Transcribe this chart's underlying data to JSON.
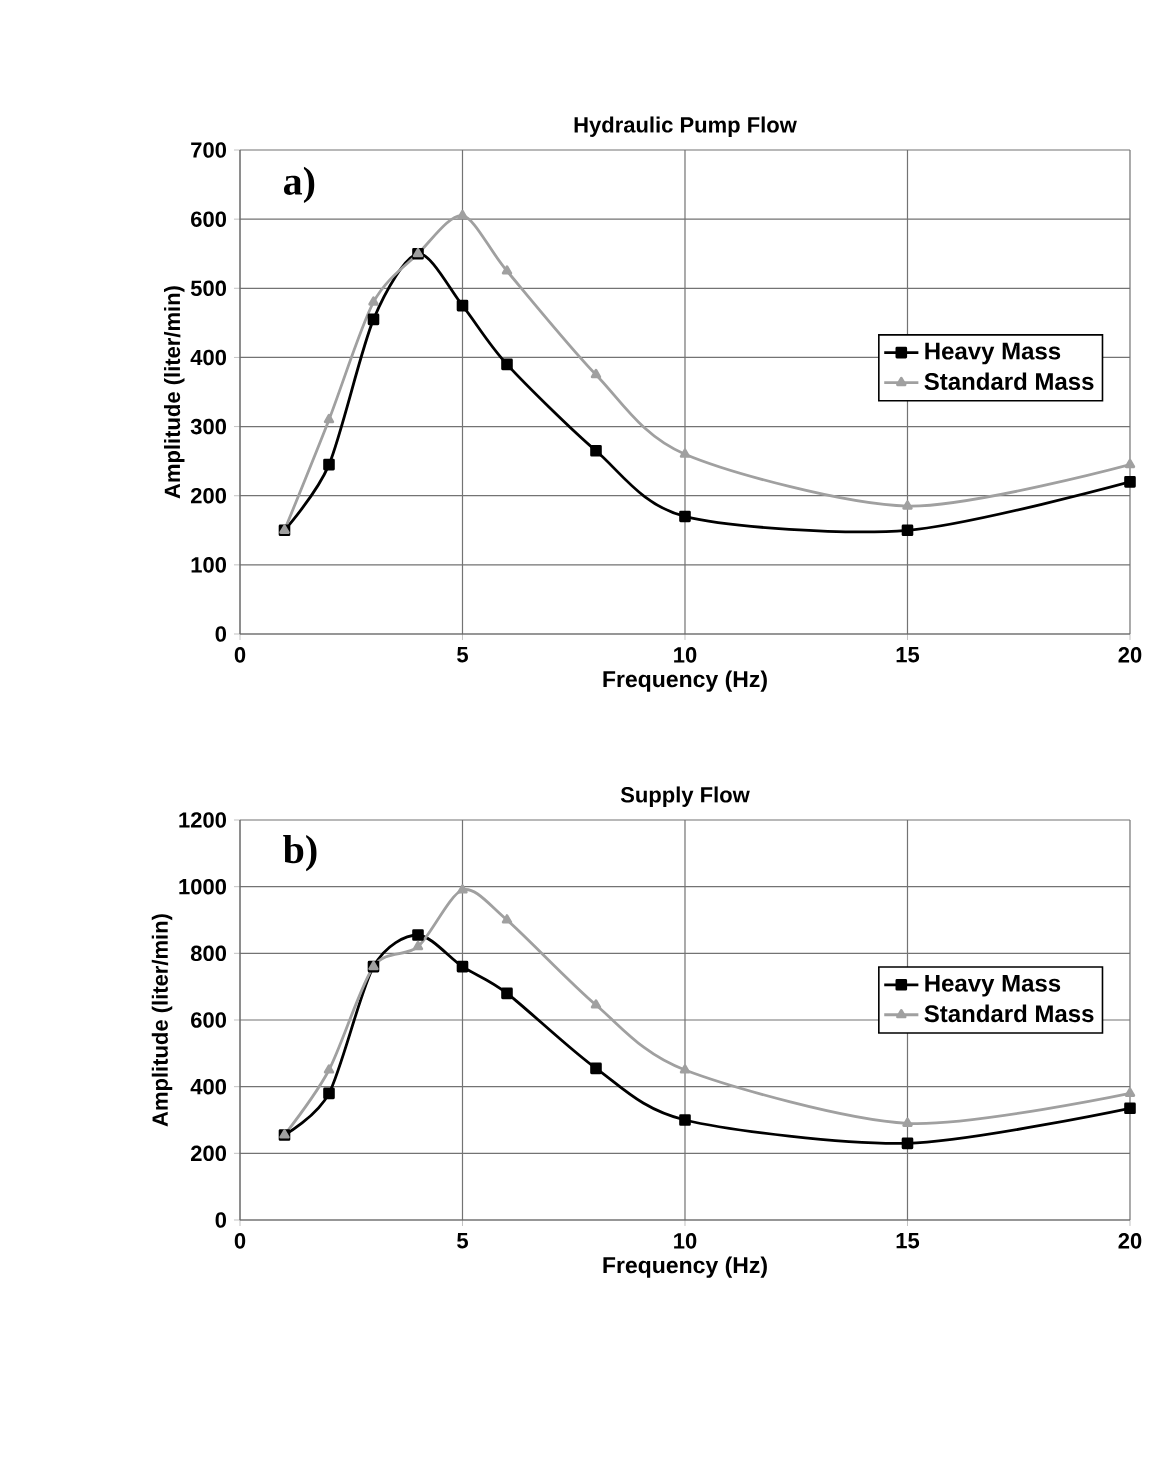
{
  "chart_data": [
    {
      "type": "line",
      "title": "Hydraulic Pump Flow",
      "xlabel": "Frequency (Hz)",
      "ylabel": "Amplitude (liter/min)",
      "annotations": [
        "a)"
      ],
      "xlim": [
        0,
        20
      ],
      "xticks": [
        0,
        5,
        10,
        15,
        20
      ],
      "ylim": [
        0,
        700
      ],
      "yticks": [
        0,
        100,
        200,
        300,
        400,
        500,
        600,
        700
      ],
      "grid": true,
      "legend": "right",
      "x": [
        1,
        2,
        3,
        4,
        5,
        6,
        8,
        10,
        15,
        20
      ],
      "series": [
        {
          "name": "Heavy Mass",
          "color": "#000000",
          "marker": "square",
          "values": [
            150,
            245,
            455,
            550,
            475,
            390,
            265,
            170,
            150,
            220
          ]
        },
        {
          "name": "Standard Mass",
          "color": "#a0a0a0",
          "marker": "triangle",
          "values": [
            150,
            310,
            480,
            550,
            605,
            525,
            375,
            260,
            185,
            245
          ]
        }
      ]
    },
    {
      "type": "line",
      "title": "Supply Flow",
      "xlabel": "Frequency (Hz)",
      "ylabel": "Amplitude (liter/min)",
      "annotations": [
        "b)"
      ],
      "xlim": [
        0,
        20
      ],
      "xticks": [
        0,
        5,
        10,
        15,
        20
      ],
      "ylim": [
        0,
        1200
      ],
      "yticks": [
        0,
        200,
        400,
        600,
        800,
        1000,
        1200
      ],
      "grid": true,
      "legend": "right",
      "x": [
        1,
        2,
        3,
        4,
        5,
        6,
        8,
        10,
        15,
        20
      ],
      "series": [
        {
          "name": "Heavy Mass",
          "color": "#000000",
          "marker": "square",
          "values": [
            255,
            380,
            760,
            855,
            760,
            680,
            455,
            300,
            230,
            335
          ]
        },
        {
          "name": "Standard Mass",
          "color": "#a0a0a0",
          "marker": "triangle",
          "values": [
            255,
            450,
            760,
            820,
            990,
            900,
            645,
            450,
            290,
            380
          ]
        }
      ]
    }
  ]
}
